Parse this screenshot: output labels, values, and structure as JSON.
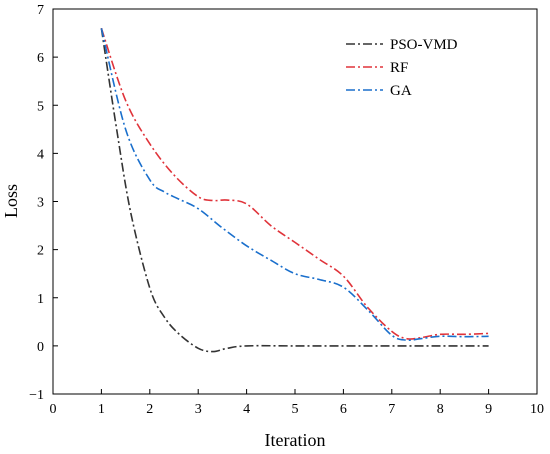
{
  "chart_data": {
    "type": "line",
    "xlabel": "Iteration",
    "ylabel": "Loss",
    "xlim": [
      0,
      10
    ],
    "ylim": [
      -1,
      7
    ],
    "xticks": [
      0,
      1,
      2,
      3,
      4,
      5,
      6,
      7,
      8,
      9,
      10
    ],
    "yticks": [
      -1,
      0,
      1,
      2,
      3,
      4,
      5,
      6,
      7
    ],
    "grid": false,
    "legend_position": "top-right",
    "series": [
      {
        "name": "PSO-VMD",
        "color": "#333333",
        "line_style": "dash-dot",
        "x": [
          1,
          1.3,
          1.6,
          2,
          2.3,
          2.6,
          3,
          3.3,
          3.6,
          4,
          5,
          6,
          7,
          8,
          9
        ],
        "y": [
          6.6,
          4.6,
          2.8,
          1.2,
          0.6,
          0.25,
          -0.05,
          -0.12,
          -0.05,
          0.0,
          0.0,
          0.0,
          0.0,
          0.0,
          0.0
        ]
      },
      {
        "name": "RF",
        "color": "#e0333a",
        "line_style": "dash-dot",
        "x": [
          1,
          1.5,
          2,
          2.5,
          3,
          3.3,
          3.6,
          4,
          4.5,
          5,
          5.5,
          6,
          6.5,
          7,
          7.3,
          7.6,
          8,
          8.5,
          9
        ],
        "y": [
          6.6,
          5.1,
          4.2,
          3.55,
          3.1,
          3.02,
          3.03,
          2.95,
          2.5,
          2.15,
          1.8,
          1.45,
          0.8,
          0.3,
          0.15,
          0.17,
          0.24,
          0.24,
          0.26
        ]
      },
      {
        "name": "GA",
        "color": "#1a6fcc",
        "line_style": "dash-dot",
        "x": [
          1,
          1.5,
          2,
          2.3,
          2.6,
          3,
          3.5,
          4,
          4.5,
          5,
          5.5,
          6,
          6.5,
          7,
          7.3,
          7.6,
          8,
          8.5,
          9
        ],
        "y": [
          6.6,
          4.5,
          3.45,
          3.2,
          3.05,
          2.85,
          2.45,
          2.08,
          1.78,
          1.5,
          1.38,
          1.22,
          0.75,
          0.22,
          0.12,
          0.15,
          0.2,
          0.19,
          0.2
        ]
      }
    ]
  }
}
